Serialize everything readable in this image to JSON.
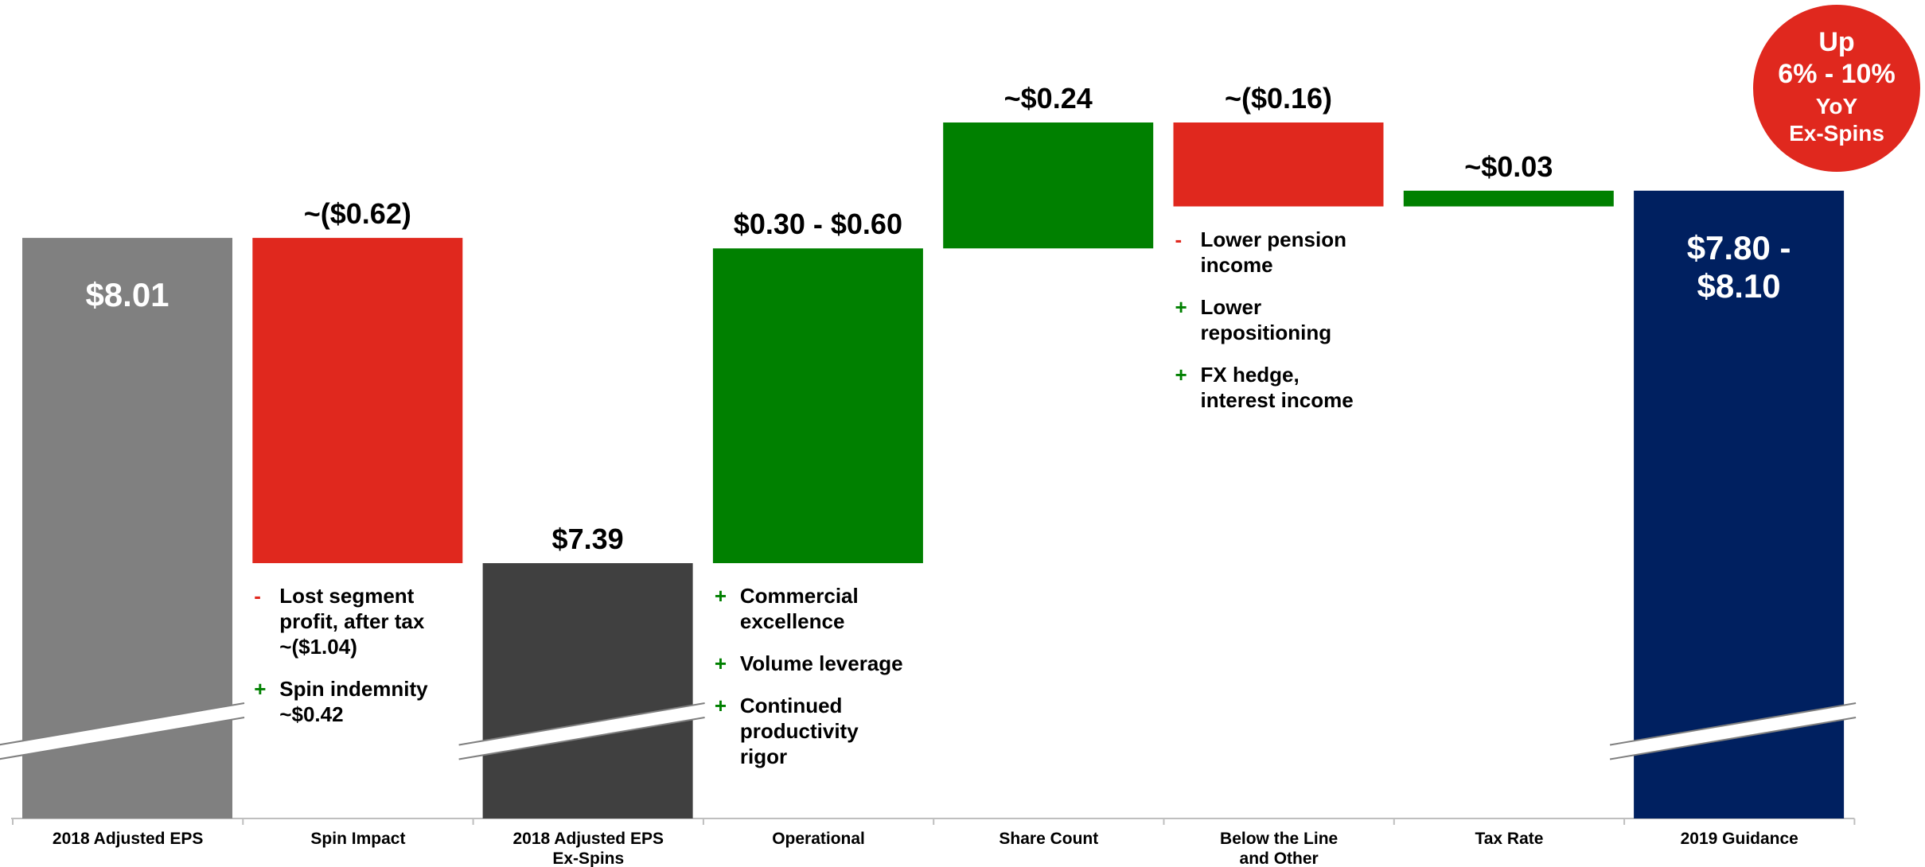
{
  "chart_data": {
    "type": "waterfall",
    "categories": [
      "2018 Adjusted EPS",
      "Spin Impact",
      "2018 Adjusted EPS\nEx-Spins",
      "Operational",
      "Share Count",
      "Below the Line\nand Other",
      "Tax Rate",
      "2019 Guidance"
    ],
    "values": [
      8.01,
      -0.62,
      7.39,
      [
        0.3,
        0.6
      ],
      0.24,
      -0.16,
      0.03,
      [
        7.8,
        8.1
      ]
    ],
    "value_labels": [
      "$8.01",
      "~($0.62)",
      "$7.39",
      "$0.30 - $0.60",
      "~$0.24",
      "~($0.16)",
      "~$0.03",
      "$7.80 -\n$8.10"
    ],
    "totals": [
      true,
      false,
      true,
      false,
      false,
      false,
      false,
      true
    ],
    "label_inside": [
      true,
      false,
      false,
      false,
      false,
      false,
      false,
      true
    ],
    "axis_break": [
      true,
      false,
      true,
      false,
      false,
      false,
      false,
      true
    ],
    "colors": [
      "#808080",
      "#e0281e",
      "#404040",
      "#008000",
      "#008000",
      "#e0281e",
      "#008000",
      "#002060"
    ],
    "notes": [
      [],
      [
        {
          "sign": "-",
          "color": "#e0281e",
          "text": "Lost segment\nprofit, after tax\n~($1.04)"
        },
        {
          "sign": "+",
          "color": "#008000",
          "text": "Spin indemnity\n~$0.42"
        }
      ],
      [],
      [
        {
          "sign": "+",
          "color": "#008000",
          "text": "Commercial\nexcellence"
        },
        {
          "sign": "+",
          "color": "#008000",
          "text": "Volume leverage"
        },
        {
          "sign": "+",
          "color": "#008000",
          "text": "Continued\nproductivity\nrigor"
        }
      ],
      [],
      [
        {
          "sign": "-",
          "color": "#e0281e",
          "text": "Lower pension\nincome"
        },
        {
          "sign": "+",
          "color": "#008000",
          "text": "Lower\nrepositioning"
        },
        {
          "sign": "+",
          "color": "#008000",
          "text": "FX hedge,\ninterest income"
        }
      ],
      [],
      []
    ],
    "badge": {
      "lines": [
        "Up",
        "6% - 10%",
        "YoY",
        "Ex-Spins"
      ],
      "color": "#e0281e"
    }
  }
}
